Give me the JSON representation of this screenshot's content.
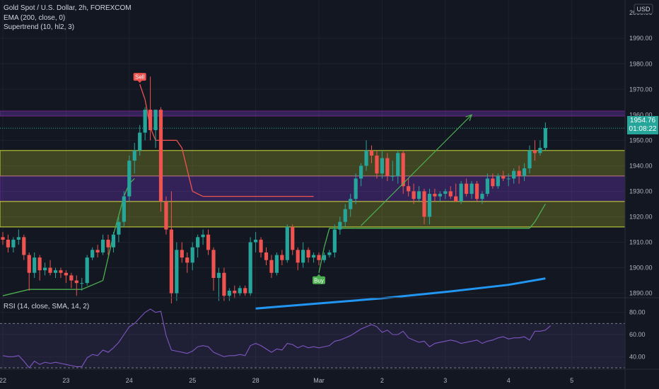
{
  "chart_data": [
    {
      "type": "candlestick",
      "title": "Gold Spot / U.S. Dollar, 2h, FOREXCOM",
      "indicators": [
        "EMA (200, close, 0)",
        "Supertrend (10, hl2, 3)"
      ],
      "currency": "USD",
      "y_ticks": [
        "1890.00",
        "1900.00",
        "1910.00",
        "1920.00",
        "1930.00",
        "1940.00",
        "1950.00",
        "1960.00",
        "1970.00",
        "1980.00",
        "1990.00"
      ],
      "y_top_tick": "2000.00",
      "ylim": [
        1886,
        2002
      ],
      "x_ticks": [
        {
          "label": "22",
          "index": 0
        },
        {
          "label": "23",
          "index": 12
        },
        {
          "label": "24",
          "index": 24
        },
        {
          "label": "25",
          "index": 36
        },
        {
          "label": "28",
          "index": 48
        },
        {
          "label": "Mar",
          "index": 60
        },
        {
          "label": "2",
          "index": 72
        },
        {
          "label": "3",
          "index": 84
        },
        {
          "label": "4",
          "index": 96
        },
        {
          "label": "5",
          "index": 108
        }
      ],
      "last_price": "1954.76",
      "countdown": "01:08:22",
      "candles": [
        [
          1912.0,
          1914.0,
          1909.0,
          1911.0
        ],
        [
          1911.0,
          1913.0,
          1906.0,
          1908.0
        ],
        [
          1908.0,
          1912.0,
          1906.0,
          1911.0
        ],
        [
          1911.0,
          1915.0,
          1909.0,
          1912.0
        ],
        [
          1912.0,
          1913.0,
          1903.0,
          1905.0
        ],
        [
          1905.0,
          1906.0,
          1891.0,
          1898.0
        ],
        [
          1898.0,
          1906.0,
          1896.0,
          1904.0
        ],
        [
          1904.0,
          1905.0,
          1895.0,
          1899.0
        ],
        [
          1899.0,
          1902.0,
          1897.0,
          1900.0
        ],
        [
          1900.0,
          1903.0,
          1897.0,
          1898.0
        ],
        [
          1898.0,
          1900.0,
          1896.0,
          1899.0
        ],
        [
          1899.0,
          1900.0,
          1896.0,
          1898.0
        ],
        [
          1898.0,
          1899.0,
          1894.0,
          1897.0
        ],
        [
          1897.0,
          1898.0,
          1892.0,
          1895.0
        ],
        [
          1895.0,
          1897.0,
          1889.0,
          1894.0
        ],
        [
          1894.0,
          1896.0,
          1891.0,
          1894.0
        ],
        [
          1894.0,
          1905.0,
          1893.0,
          1904.0
        ],
        [
          1904.0,
          1908.0,
          1903.0,
          1907.0
        ],
        [
          1907.0,
          1909.0,
          1904.0,
          1906.0
        ],
        [
          1906.0,
          1913.0,
          1905.0,
          1911.0
        ],
        [
          1911.0,
          1913.0,
          1905.0,
          1908.0
        ],
        [
          1908.0,
          1914.0,
          1906.0,
          1913.0
        ],
        [
          1913.0,
          1920.0,
          1910.0,
          1918.0
        ],
        [
          1918.0,
          1930.0,
          1916.0,
          1928.0
        ],
        [
          1928.0,
          1944.0,
          1926.0,
          1942.0
        ],
        [
          1942.0,
          1949.0,
          1937.0,
          1946.0
        ],
        [
          1946.0,
          1956.0,
          1944.0,
          1953.0
        ],
        [
          1953.0,
          1963.0,
          1950.0,
          1962.0
        ],
        [
          1962.0,
          1975.0,
          1950.0,
          1954.0
        ],
        [
          1954.0,
          1962.0,
          1947.0,
          1962.0
        ],
        [
          1962.0,
          1963.0,
          1922.0,
          1926.0
        ],
        [
          1926.0,
          1928.0,
          1913.0,
          1915.0
        ],
        [
          1915.0,
          1930.0,
          1886.0,
          1890.0
        ],
        [
          1890.0,
          1910.0,
          1887.0,
          1907.0
        ],
        [
          1907.0,
          1910.0,
          1902.0,
          1904.0
        ],
        [
          1904.0,
          1906.0,
          1898.0,
          1902.0
        ],
        [
          1902.0,
          1910.0,
          1899.0,
          1908.0
        ],
        [
          1908.0,
          1913.0,
          1904.0,
          1912.0
        ],
        [
          1912.0,
          1915.0,
          1909.0,
          1913.0
        ],
        [
          1913.0,
          1915.0,
          1905.0,
          1907.0
        ],
        [
          1907.0,
          1908.0,
          1891.0,
          1896.0
        ],
        [
          1896.0,
          1900.0,
          1887.0,
          1898.0
        ],
        [
          1898.0,
          1900.0,
          1887.0,
          1889.0
        ],
        [
          1889.0,
          1892.0,
          1887.0,
          1891.0
        ],
        [
          1891.0,
          1893.0,
          1888.0,
          1890.0
        ],
        [
          1890.0,
          1893.0,
          1889.0,
          1892.0
        ],
        [
          1892.0,
          1893.0,
          1889.0,
          1890.0
        ],
        [
          1890.0,
          1912.0,
          1889.0,
          1910.0
        ],
        [
          1910.0,
          1914.0,
          1906.0,
          1911.0
        ],
        [
          1911.0,
          1912.0,
          1904.0,
          1906.0
        ],
        [
          1906.0,
          1908.0,
          1901.0,
          1903.0
        ],
        [
          1903.0,
          1905.0,
          1896.0,
          1898.0
        ],
        [
          1898.0,
          1906.0,
          1897.0,
          1905.0
        ],
        [
          1905.0,
          1907.0,
          1901.0,
          1903.0
        ],
        [
          1903.0,
          1917.0,
          1902.0,
          1916.0
        ],
        [
          1916.0,
          1917.0,
          1905.0,
          1907.0
        ],
        [
          1907.0,
          1908.0,
          1899.0,
          1902.0
        ],
        [
          1902.0,
          1910.0,
          1900.0,
          1907.0
        ],
        [
          1907.0,
          1908.0,
          1902.0,
          1904.0
        ],
        [
          1904.0,
          1906.0,
          1902.0,
          1905.0
        ],
        [
          1905.0,
          1906.0,
          1901.0,
          1903.0
        ],
        [
          1903.0,
          1906.0,
          1902.0,
          1905.0
        ],
        [
          1905.0,
          1907.0,
          1904.0,
          1906.0
        ],
        [
          1906.0,
          1917.0,
          1904.0,
          1915.0
        ],
        [
          1915.0,
          1920.0,
          1913.0,
          1918.0
        ],
        [
          1918.0,
          1925.0,
          1916.0,
          1923.0
        ],
        [
          1923.0,
          1929.0,
          1920.0,
          1927.0
        ],
        [
          1927.0,
          1937.0,
          1925.0,
          1935.0
        ],
        [
          1935.0,
          1941.0,
          1932.0,
          1940.0
        ],
        [
          1940.0,
          1950.0,
          1938.0,
          1946.0
        ],
        [
          1946.0,
          1948.0,
          1941.0,
          1944.0
        ],
        [
          1944.0,
          1946.0,
          1935.0,
          1937.0
        ],
        [
          1937.0,
          1946.0,
          1935.0,
          1943.0
        ],
        [
          1943.0,
          1945.0,
          1934.0,
          1936.0
        ],
        [
          1936.0,
          1942.0,
          1934.0,
          1936.0
        ],
        [
          1936.0,
          1946.0,
          1933.0,
          1945.0
        ],
        [
          1945.0,
          1946.0,
          1929.0,
          1932.0
        ],
        [
          1932.0,
          1935.0,
          1928.0,
          1930.0
        ],
        [
          1930.0,
          1933.0,
          1925.0,
          1927.0
        ],
        [
          1927.0,
          1932.0,
          1926.0,
          1930.0
        ],
        [
          1930.0,
          1931.0,
          1917.0,
          1920.0
        ],
        [
          1920.0,
          1931.0,
          1917.0,
          1929.0
        ],
        [
          1929.0,
          1931.0,
          1926.0,
          1928.0
        ],
        [
          1928.0,
          1930.0,
          1926.0,
          1929.0
        ],
        [
          1929.0,
          1931.0,
          1927.0,
          1930.0
        ],
        [
          1930.0,
          1932.0,
          1927.0,
          1928.0
        ],
        [
          1928.0,
          1933.0,
          1926.0,
          1926.0
        ],
        [
          1926.0,
          1934.0,
          1925.0,
          1933.0
        ],
        [
          1933.0,
          1935.0,
          1928.0,
          1929.0
        ],
        [
          1929.0,
          1934.0,
          1927.0,
          1933.0
        ],
        [
          1933.0,
          1934.0,
          1926.0,
          1927.0
        ],
        [
          1927.0,
          1930.0,
          1925.0,
          1929.0
        ],
        [
          1929.0,
          1937.0,
          1928.0,
          1935.0
        ],
        [
          1935.0,
          1937.0,
          1931.0,
          1932.0
        ],
        [
          1932.0,
          1937.0,
          1931.0,
          1936.0
        ],
        [
          1936.0,
          1938.0,
          1934.0,
          1935.0
        ],
        [
          1935.0,
          1937.0,
          1932.0,
          1935.0
        ],
        [
          1935.0,
          1939.0,
          1933.0,
          1938.0
        ],
        [
          1938.0,
          1940.0,
          1933.0,
          1936.0
        ],
        [
          1936.0,
          1941.0,
          1934.0,
          1939.0
        ],
        [
          1939.0,
          1948.0,
          1937.0,
          1946.0
        ],
        [
          1946.0,
          1950.0,
          1942.0,
          1945.0
        ],
        [
          1945.0,
          1950.0,
          1944.0,
          1947.0
        ],
        [
          1947.0,
          1957.0,
          1946.0,
          1954.8
        ]
      ],
      "ema200": [
        {
          "index": 48,
          "value": 1884.0
        },
        {
          "index": 60,
          "value": 1886.0
        },
        {
          "index": 72,
          "value": 1888.0
        },
        {
          "index": 84,
          "value": 1890.5
        },
        {
          "index": 96,
          "value": 1893.3
        },
        {
          "index": 103,
          "value": 1895.8
        }
      ],
      "supertrend": [
        {
          "index": 0,
          "value": 1889.0,
          "dir": "up"
        },
        {
          "index": 5,
          "value": 1891.5,
          "dir": "up"
        },
        {
          "index": 15,
          "value": 1891.5,
          "dir": "up"
        },
        {
          "index": 19,
          "value": 1895.0,
          "dir": "up"
        },
        {
          "index": 21,
          "value": 1913.0,
          "dir": "up"
        },
        {
          "index": 23,
          "value": 1928.0,
          "dir": "up"
        },
        {
          "index": 24,
          "value": 1933.0,
          "dir": "up"
        },
        {
          "index": 25,
          "value": 1935.0,
          "dir": "up"
        },
        {
          "index": 26,
          "value": 1972.0,
          "dir": "down"
        },
        {
          "index": 27,
          "value": 1966.0,
          "dir": "down"
        },
        {
          "index": 28,
          "value": 1955.0,
          "dir": "down"
        },
        {
          "index": 29,
          "value": 1950.0,
          "dir": "down"
        },
        {
          "index": 31,
          "value": 1950.0,
          "dir": "down"
        },
        {
          "index": 33,
          "value": 1950.0,
          "dir": "down"
        },
        {
          "index": 34,
          "value": 1947.0,
          "dir": "down"
        },
        {
          "index": 36,
          "value": 1930.0,
          "dir": "down"
        },
        {
          "index": 38,
          "value": 1928.0,
          "dir": "down"
        },
        {
          "index": 58,
          "value": 1928.0,
          "dir": "down"
        },
        {
          "index": 59,
          "value": 1928.0,
          "dir": "down"
        },
        {
          "index": 60,
          "value": 1898.0,
          "dir": "up"
        },
        {
          "index": 61,
          "value": 1908.0,
          "dir": "up"
        },
        {
          "index": 62,
          "value": 1915.5,
          "dir": "up"
        },
        {
          "index": 67,
          "value": 1915.5,
          "dir": "up"
        },
        {
          "index": 90,
          "value": 1915.5,
          "dir": "up"
        },
        {
          "index": 100,
          "value": 1915.5,
          "dir": "up"
        },
        {
          "index": 101,
          "value": 1918.0,
          "dir": "up"
        },
        {
          "index": 103,
          "value": 1925.0,
          "dir": "up"
        }
      ],
      "signals": [
        {
          "label": "Sell",
          "index": 26,
          "value": 1972.0
        },
        {
          "label": "Buy",
          "index": 60,
          "value": 1898.0
        }
      ],
      "zones": [
        {
          "from": 1961.5,
          "to": 1959.5,
          "kind": "purple"
        },
        {
          "from": 1946.0,
          "to": 1936.0,
          "kind": "olive"
        },
        {
          "from": 1936.0,
          "to": 1926.0,
          "kind": "purple"
        },
        {
          "from": 1926.0,
          "to": 1916.0,
          "kind": "olive"
        }
      ],
      "projection": {
        "from_index": 68,
        "from_value": 1916.5,
        "to_index": 89,
        "to_value": 1960.0
      },
      "colors": {
        "up": "#26a69a",
        "down": "#ef5350",
        "supertrend_up": "#4caf50",
        "supertrend_down": "#ef5350",
        "ema": "#2196f3",
        "rsi": "#7e57c2",
        "projection": "#4caf50"
      }
    },
    {
      "type": "line",
      "title": "RSI (14, close, SMA, 14, 2)",
      "y_ticks": [
        "40.00",
        "60.00",
        "80.00"
      ],
      "ylim": [
        30,
        90
      ],
      "bands": [
        70,
        30
      ],
      "values": [
        41,
        40,
        40,
        41,
        36,
        30,
        36,
        33,
        35,
        34,
        35,
        34,
        33,
        32,
        31,
        31,
        39,
        42,
        41,
        46,
        44,
        48,
        53,
        60,
        67,
        70,
        75,
        80,
        83,
        80,
        81,
        59,
        46,
        45,
        44,
        43,
        45,
        49,
        50,
        49,
        44,
        42,
        40,
        41,
        41,
        42,
        41,
        50,
        52,
        50,
        47,
        44,
        47,
        46,
        52,
        51,
        48,
        50,
        48,
        49,
        48,
        49,
        50,
        54,
        55,
        57,
        59,
        62,
        65,
        67,
        69,
        67,
        62,
        64,
        60,
        60,
        63,
        57,
        55,
        53,
        54,
        49,
        52,
        53,
        54,
        55,
        54,
        52,
        53,
        54,
        55,
        52,
        54,
        55,
        57,
        58,
        56,
        57,
        57,
        58,
        55,
        63,
        63,
        64,
        68
      ]
    }
  ]
}
